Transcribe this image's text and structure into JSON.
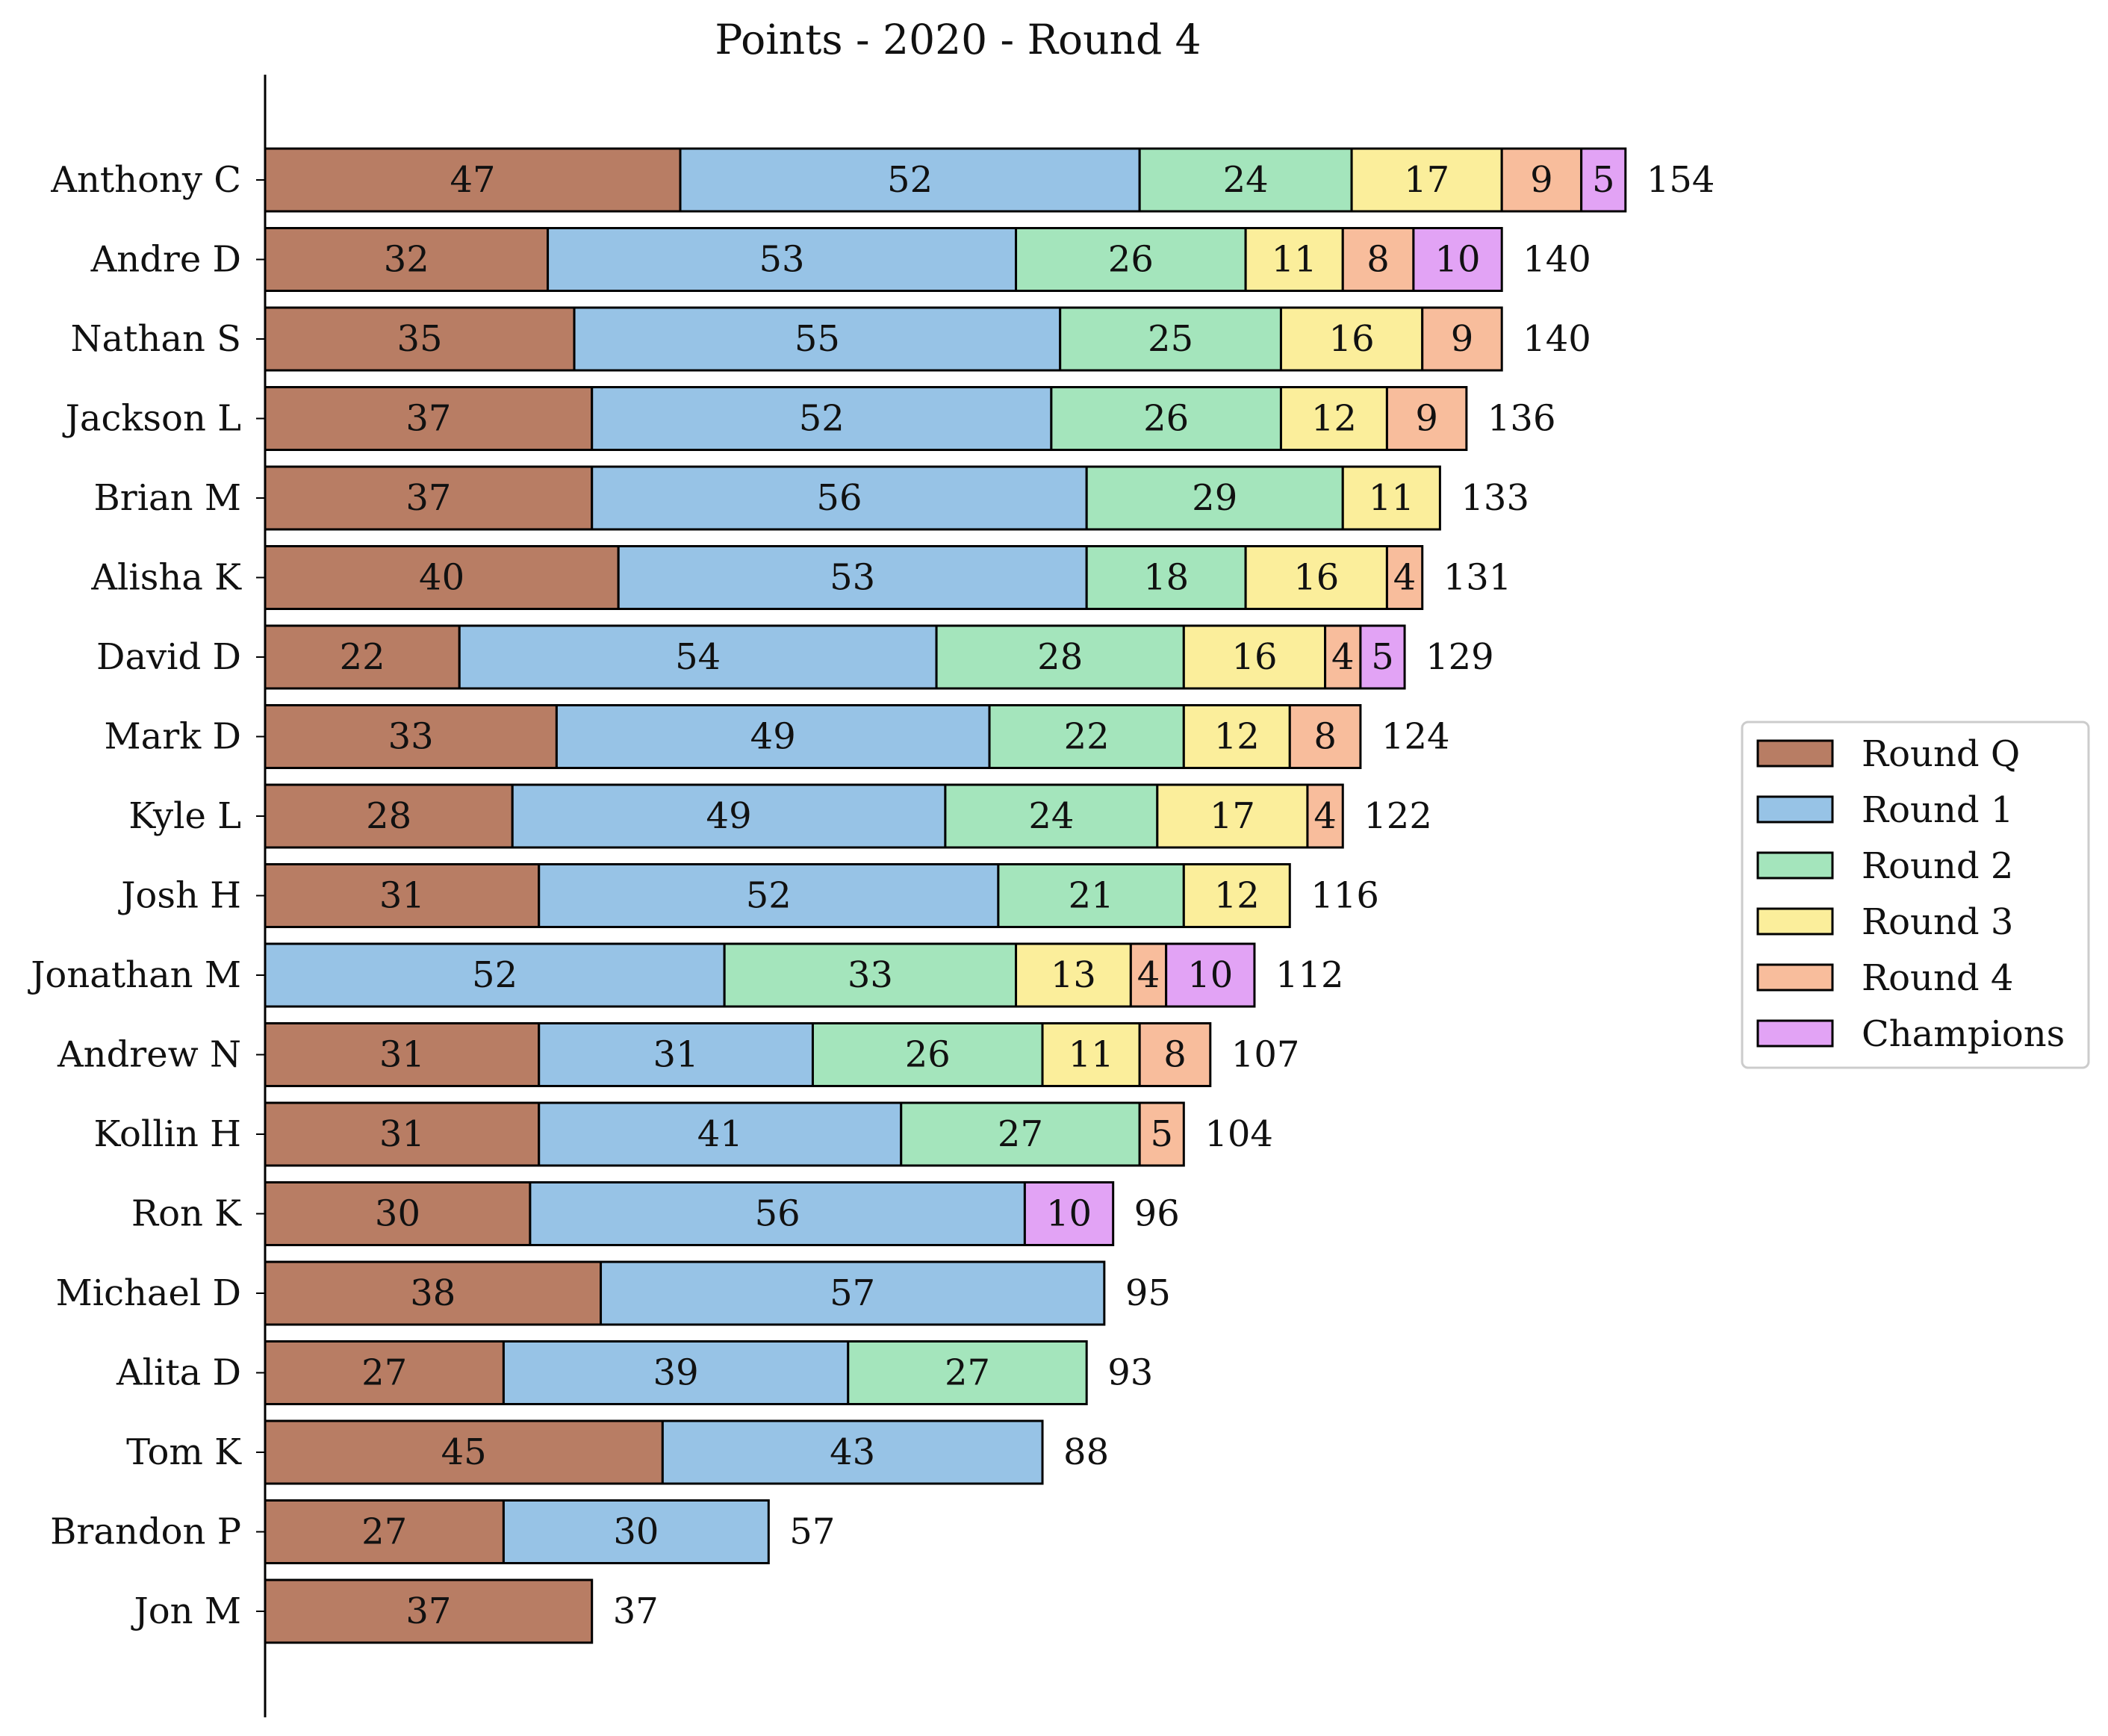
{
  "chart_data": {
    "type": "bar",
    "orientation": "horizontal",
    "stacked": true,
    "title": "Points - 2020 - Round 4",
    "xlabel": "",
    "ylabel": "",
    "xlim": [
      0,
      200
    ],
    "grid": false,
    "legend_position": "right",
    "categories": [
      "Anthony C",
      "Andre D",
      "Nathan S",
      "Jackson L",
      "Brian M",
      "Alisha K",
      "David D",
      "Mark D",
      "Kyle L",
      "Josh H",
      "Jonathan M",
      "Andrew N",
      "Kollin H",
      "Ron K",
      "Michael D",
      "Alita D",
      "Tom K",
      "Brandon P",
      "Jon M"
    ],
    "series": [
      {
        "name": "Round Q",
        "color": "#b87d64",
        "values": [
          47,
          32,
          35,
          37,
          37,
          40,
          22,
          33,
          28,
          31,
          0,
          31,
          31,
          30,
          38,
          27,
          45,
          27,
          37
        ]
      },
      {
        "name": "Round 1",
        "color": "#97c3e6",
        "values": [
          52,
          53,
          55,
          52,
          56,
          53,
          54,
          49,
          49,
          52,
          52,
          31,
          41,
          56,
          57,
          39,
          43,
          30,
          0
        ]
      },
      {
        "name": "Round 2",
        "color": "#a4e5bc",
        "values": [
          24,
          26,
          25,
          26,
          29,
          18,
          28,
          22,
          24,
          21,
          33,
          26,
          27,
          0,
          0,
          27,
          0,
          0,
          0
        ]
      },
      {
        "name": "Round 3",
        "color": "#fbee9b",
        "values": [
          17,
          11,
          16,
          12,
          11,
          16,
          16,
          12,
          17,
          12,
          13,
          11,
          0,
          0,
          0,
          0,
          0,
          0,
          0
        ]
      },
      {
        "name": "Round 4",
        "color": "#f8bd9c",
        "values": [
          9,
          8,
          9,
          9,
          0,
          4,
          4,
          8,
          4,
          0,
          4,
          8,
          5,
          0,
          0,
          0,
          0,
          0,
          0
        ]
      },
      {
        "name": "Champions",
        "color": "#e2a3f5",
        "values": [
          5,
          10,
          0,
          0,
          0,
          0,
          5,
          0,
          0,
          0,
          10,
          0,
          0,
          10,
          0,
          0,
          0,
          0,
          0
        ]
      }
    ],
    "totals": [
      154,
      140,
      140,
      136,
      133,
      131,
      129,
      124,
      122,
      116,
      112,
      107,
      104,
      96,
      95,
      93,
      88,
      57,
      37
    ]
  }
}
